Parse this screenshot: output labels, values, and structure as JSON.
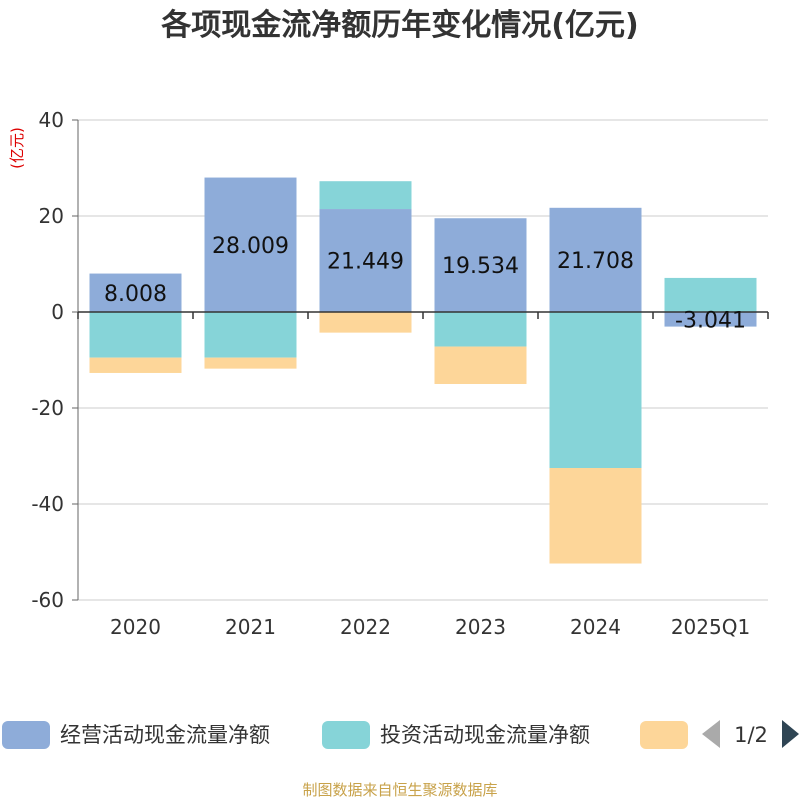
{
  "chart_data": {
    "type": "bar",
    "stacked": true,
    "title": "各项现金流净额历年变化情况(亿元)",
    "ylabel": "(亿元)",
    "ylim": [
      -60,
      40
    ],
    "yticks": [
      40,
      20,
      0,
      -20,
      -40,
      -60
    ],
    "grid": true,
    "categories": [
      "2020",
      "2021",
      "2022",
      "2023",
      "2024",
      "2025Q1"
    ],
    "series": [
      {
        "name": "经营活动现金流量净额",
        "color": "#8eacd9",
        "values": [
          8.008,
          28.009,
          21.449,
          19.534,
          21.708,
          -3.041
        ],
        "labels": [
          "8.008",
          "28.009",
          "21.449",
          "19.534",
          "21.708",
          "-3.041"
        ]
      },
      {
        "name": "投资活动现金流量净额",
        "color": "#86d4d8",
        "values": [
          -9.5,
          -9.5,
          5.8,
          -7.2,
          -32.5,
          7.1
        ]
      },
      {
        "name": "",
        "color": "#fdd699",
        "values": [
          -3.2,
          -2.3,
          -4.3,
          -7.8,
          -19.9,
          0
        ]
      }
    ],
    "legend": {
      "position": "bottom",
      "page": "1/2",
      "prev_icon": "triangle-left-icon",
      "next_icon": "triangle-right-icon"
    }
  },
  "footer": "制图数据来自恒生聚源数据库"
}
